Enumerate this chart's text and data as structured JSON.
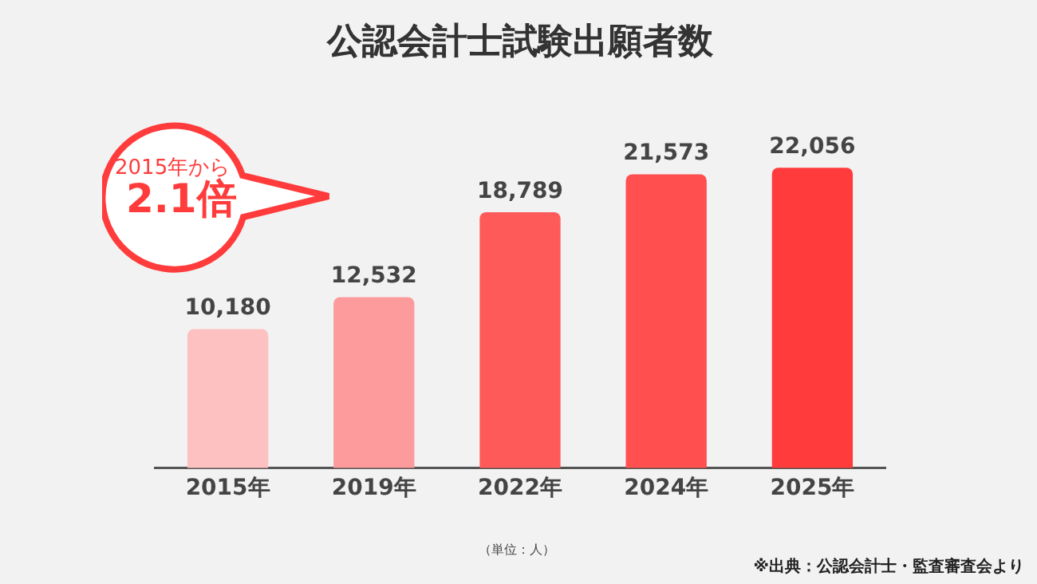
{
  "chart_data": {
    "type": "bar",
    "title": "公認会計士試験出願者数",
    "categories": [
      "2015年",
      "2019年",
      "2022年",
      "2024年",
      "2025年"
    ],
    "values": [
      10180,
      12532,
      18789,
      21573,
      22056
    ],
    "colors": [
      "#fdc1c1",
      "#fc9a9c",
      "#ff5a5a",
      "#ff4f4f",
      "#ff3b3b"
    ],
    "value_labels": [
      "10,180",
      "12,532",
      "18,789",
      "21,573",
      "22,056"
    ],
    "grid": false,
    "legend": false,
    "tick_labels": "x",
    "annotations": [
      "2015年から",
      "2.1倍",
      "（単位：人）",
      "※出典：公認会計士・監査審査会より"
    ]
  }
}
